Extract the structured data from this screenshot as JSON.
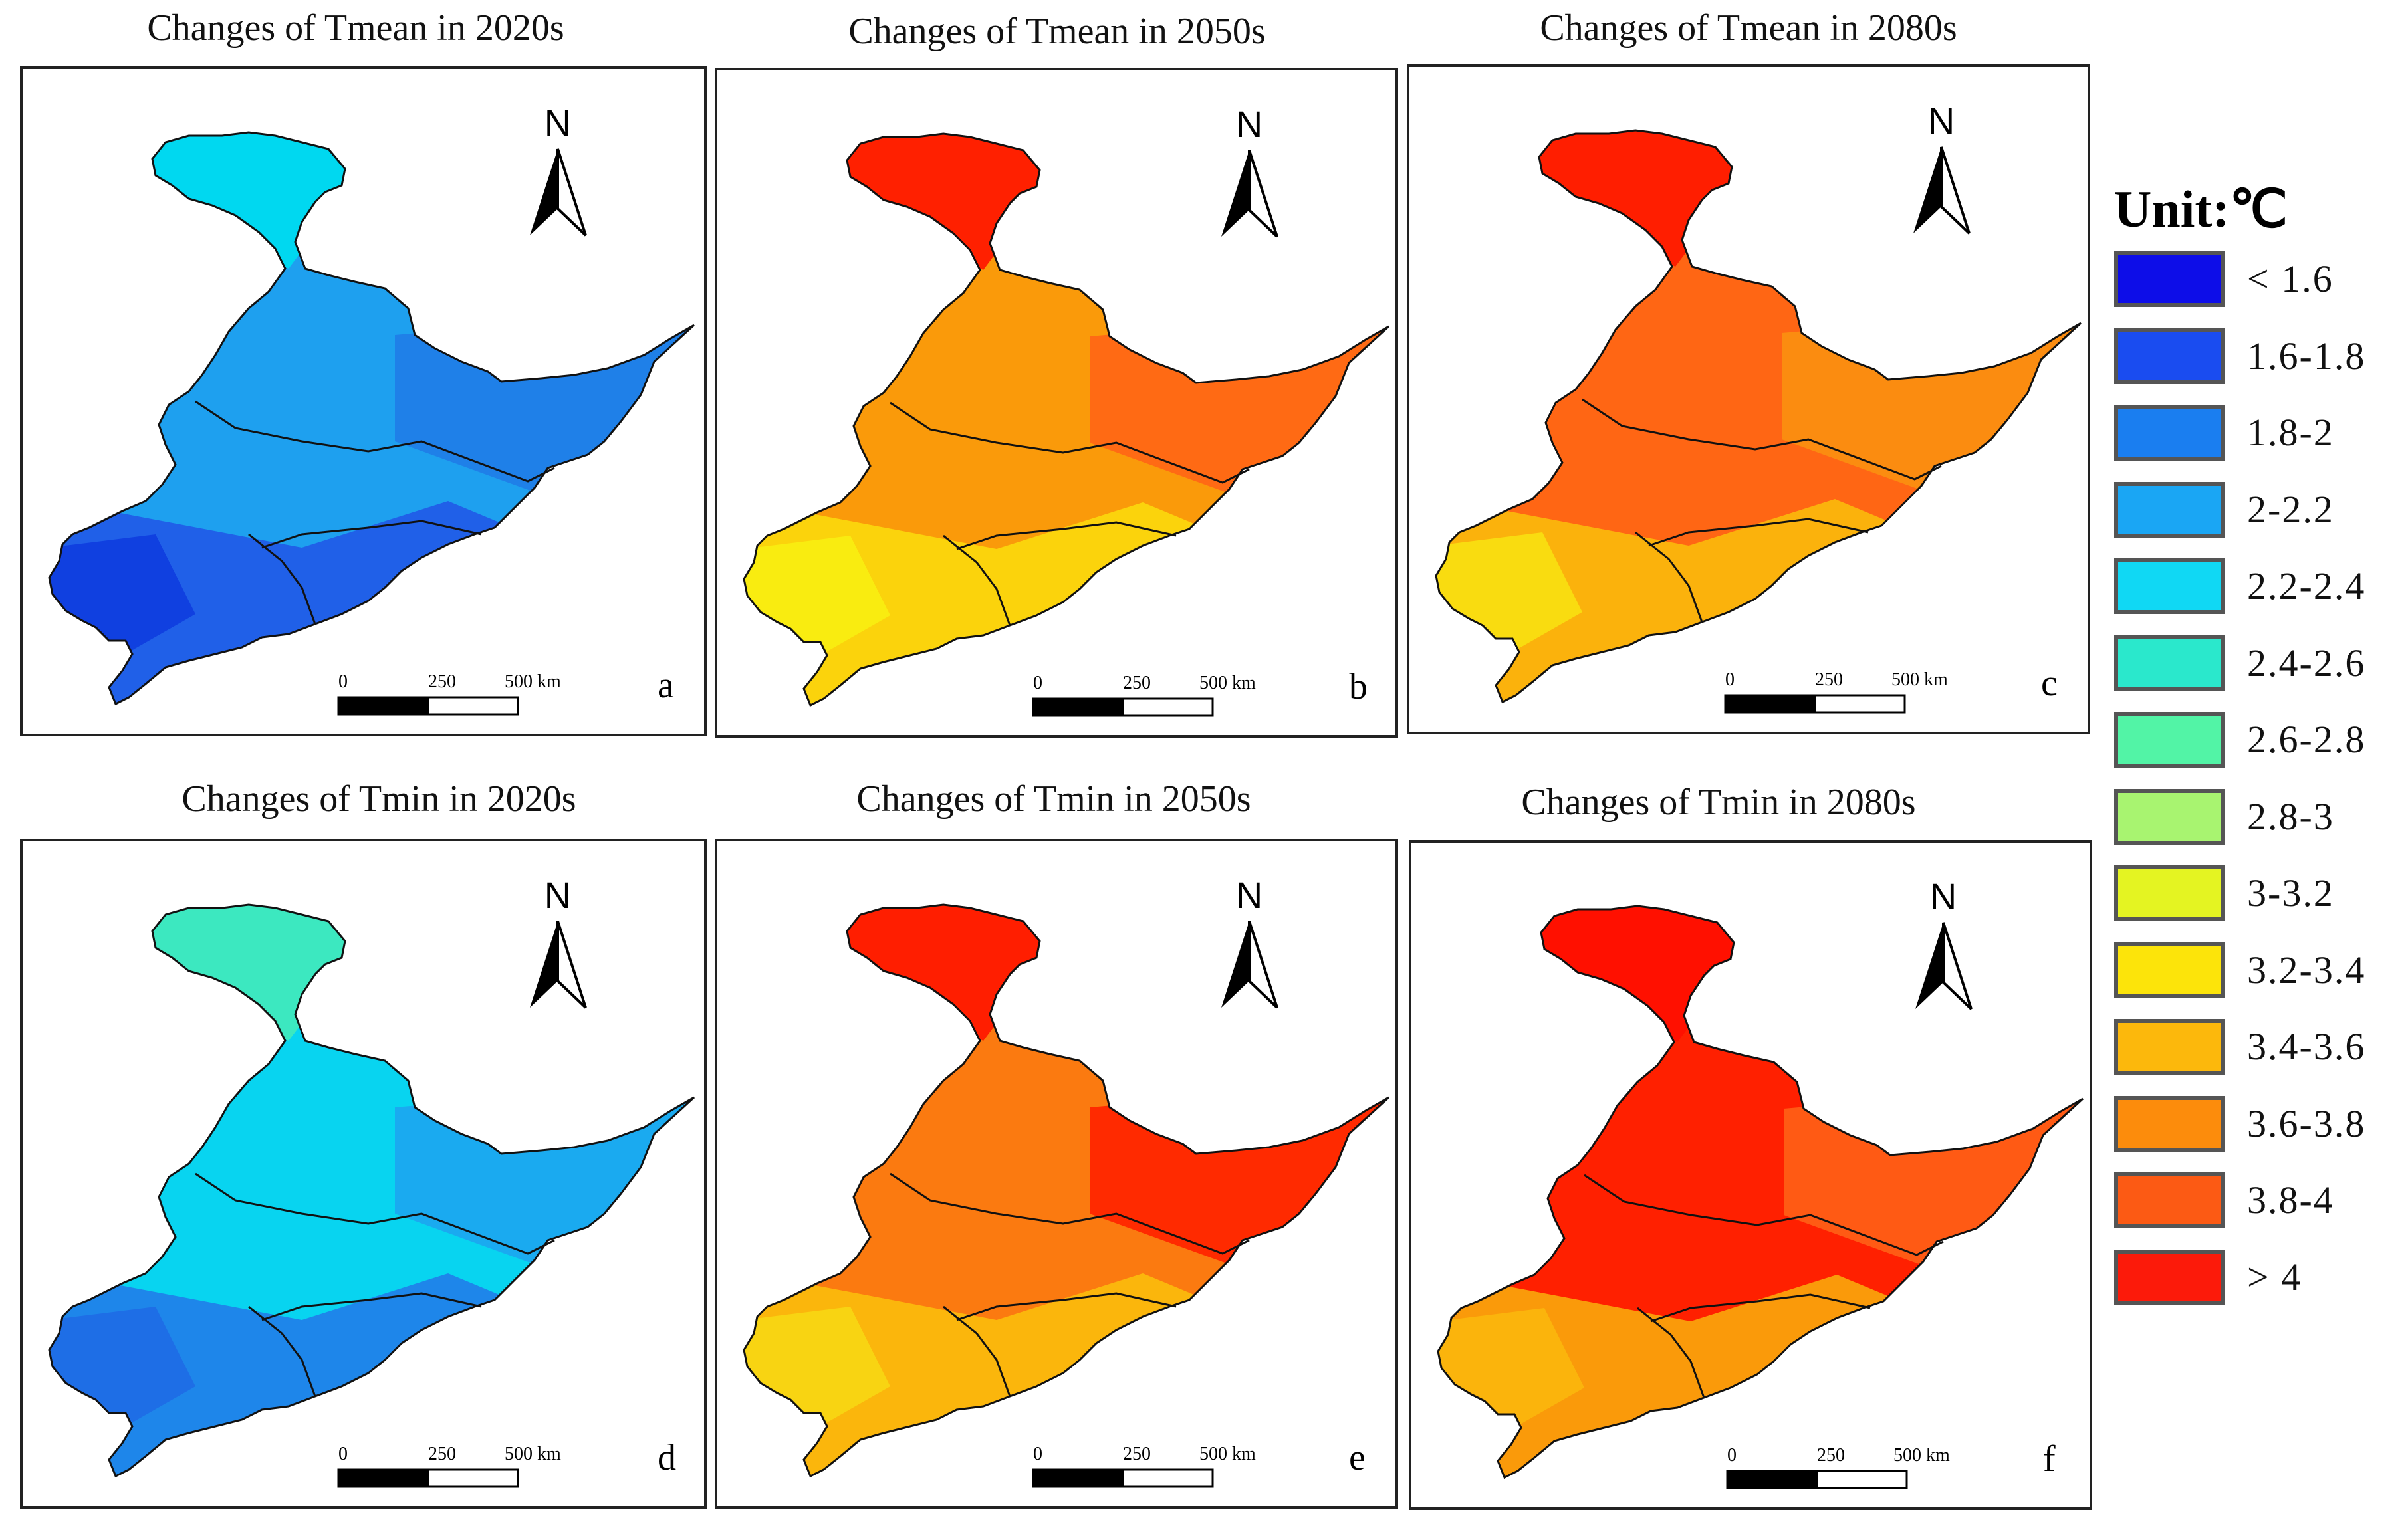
{
  "panels": [
    {
      "title": "Changes of Tmean in 2020s",
      "letter": "a",
      "north": "N",
      "scale": {
        "t0": "0",
        "t1": "250",
        "t2": "500 km"
      },
      "fill_colors": {
        "base": "#1ea0ef",
        "top": "#00d8f0",
        "east": "#1f80e8",
        "south": "#2060e8",
        "spot": "#1040e0"
      }
    },
    {
      "title": "Changes of Tmean in 2050s",
      "letter": "b",
      "north": "N",
      "scale": {
        "t0": "0",
        "t1": "250",
        "t2": "500 km"
      },
      "fill_colors": {
        "base": "#fa9a0a",
        "top": "#ff2000",
        "east": "#ff6a14",
        "south": "#fbd30c",
        "spot": "#f9ec10"
      }
    },
    {
      "title": "Changes of Tmean in 2080s",
      "letter": "c",
      "north": "N",
      "scale": {
        "t0": "0",
        "t1": "250",
        "t2": "500 km"
      },
      "fill_colors": {
        "base": "#ff6614",
        "top": "#ff1e00",
        "east": "#fb8c10",
        "south": "#fbb20c",
        "spot": "#f9dc10"
      }
    },
    {
      "title": "Changes of Tmin in 2020s",
      "letter": "d",
      "north": "N",
      "scale": {
        "t0": "0",
        "t1": "250",
        "t2": "500 km"
      },
      "fill_colors": {
        "base": "#08d4f0",
        "top": "#3ce8c0",
        "east": "#1aaaf0",
        "south": "#1e86ea",
        "spot": "#1e6ee6"
      }
    },
    {
      "title": "Changes of Tmin in 2050s",
      "letter": "e",
      "north": "N",
      "scale": {
        "t0": "0",
        "t1": "250",
        "t2": "500 km"
      },
      "fill_colors": {
        "base": "#fb7a10",
        "top": "#ff1e00",
        "east": "#ff2a00",
        "south": "#fbb60c",
        "spot": "#f8d412"
      }
    },
    {
      "title": "Changes of Tmin in 2080s",
      "letter": "f",
      "north": "N",
      "scale": {
        "t0": "0",
        "t1": "250",
        "t2": "500 km"
      },
      "fill_colors": {
        "base": "#ff2000",
        "top": "#ff1000",
        "east": "#ff5a14",
        "south": "#fa9a0a",
        "spot": "#fbb40c"
      }
    }
  ],
  "legend": {
    "title": "Unit:℃",
    "items": [
      {
        "label": "< 1.6",
        "color": "#0d0de8"
      },
      {
        "label": "1.6-1.8",
        "color": "#1a4cf0"
      },
      {
        "label": "1.8-2",
        "color": "#1a7ef0"
      },
      {
        "label": "2-2.2",
        "color": "#1aa6f4"
      },
      {
        "label": "2.2-2.4",
        "color": "#10d8f4"
      },
      {
        "label": "2.4-2.6",
        "color": "#2ae8cc"
      },
      {
        "label": "2.6-2.8",
        "color": "#52f4a6"
      },
      {
        "label": "2.8-3",
        "color": "#a8f470"
      },
      {
        "label": "3-3.2",
        "color": "#e4f422"
      },
      {
        "label": "3.2-3.4",
        "color": "#fce40a"
      },
      {
        "label": "3.4-3.6",
        "color": "#fcb80c"
      },
      {
        "label": "3.6-3.8",
        "color": "#fc8c0c"
      },
      {
        "label": "3.8-4",
        "color": "#fc5a14"
      },
      {
        "label": "> 4",
        "color": "#fc1a0a"
      }
    ]
  }
}
